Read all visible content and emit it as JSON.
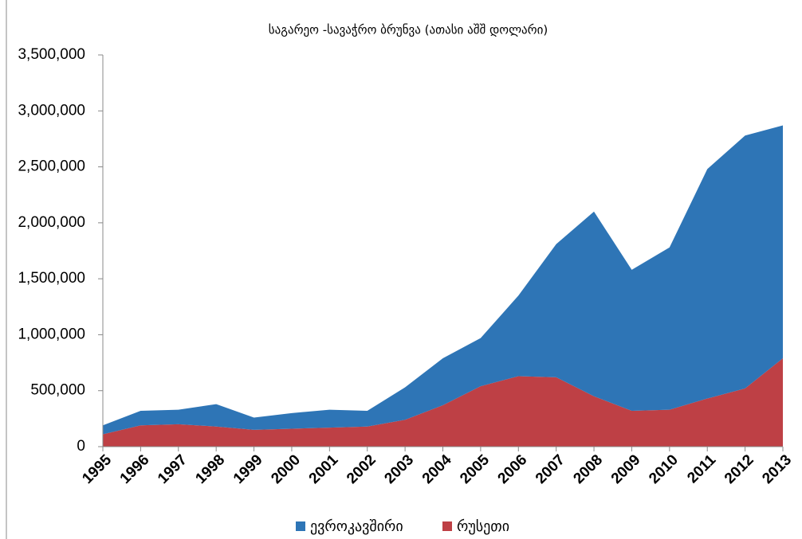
{
  "chart_data": {
    "type": "stacked-area",
    "title": "საგარეო -სავაჭრო ბრუნვა (ათასი აშშ დოლარი)",
    "categories": [
      "1995",
      "1996",
      "1997",
      "1998",
      "1999",
      "2000",
      "2001",
      "2002",
      "2003",
      "2004",
      "2005",
      "2006",
      "2007",
      "2008",
      "2009",
      "2010",
      "2011",
      "2012",
      "2013"
    ],
    "series": [
      {
        "name": "ევროკავშირი",
        "color": "#2e75b6",
        "values": [
          80000,
          130000,
          130000,
          200000,
          110000,
          140000,
          160000,
          140000,
          290000,
          420000,
          430000,
          720000,
          1190000,
          1650000,
          1260000,
          1450000,
          2050000,
          2260000,
          2080000
        ]
      },
      {
        "name": "რუსეთი",
        "color": "#be4045",
        "values": [
          110000,
          190000,
          200000,
          180000,
          150000,
          160000,
          170000,
          180000,
          240000,
          370000,
          540000,
          630000,
          620000,
          450000,
          320000,
          330000,
          430000,
          520000,
          790000
        ]
      }
    ],
    "ylim": [
      0,
      3500000
    ],
    "yticks": [
      0,
      {
        "value": 500000,
        "label": "500,000"
      },
      {
        "value": 1000000,
        "label": "1,000,000"
      },
      {
        "value": 1500000,
        "label": "1,500,000"
      },
      {
        "value": 2000000,
        "label": "2,000,000"
      },
      {
        "value": 2500000,
        "label": "2,500,000"
      },
      {
        "value": 3000000,
        "label": "3,000,000"
      },
      {
        "value": 3500000,
        "label": "3,500,000"
      }
    ],
    "grid": false,
    "legend": "bottom"
  }
}
